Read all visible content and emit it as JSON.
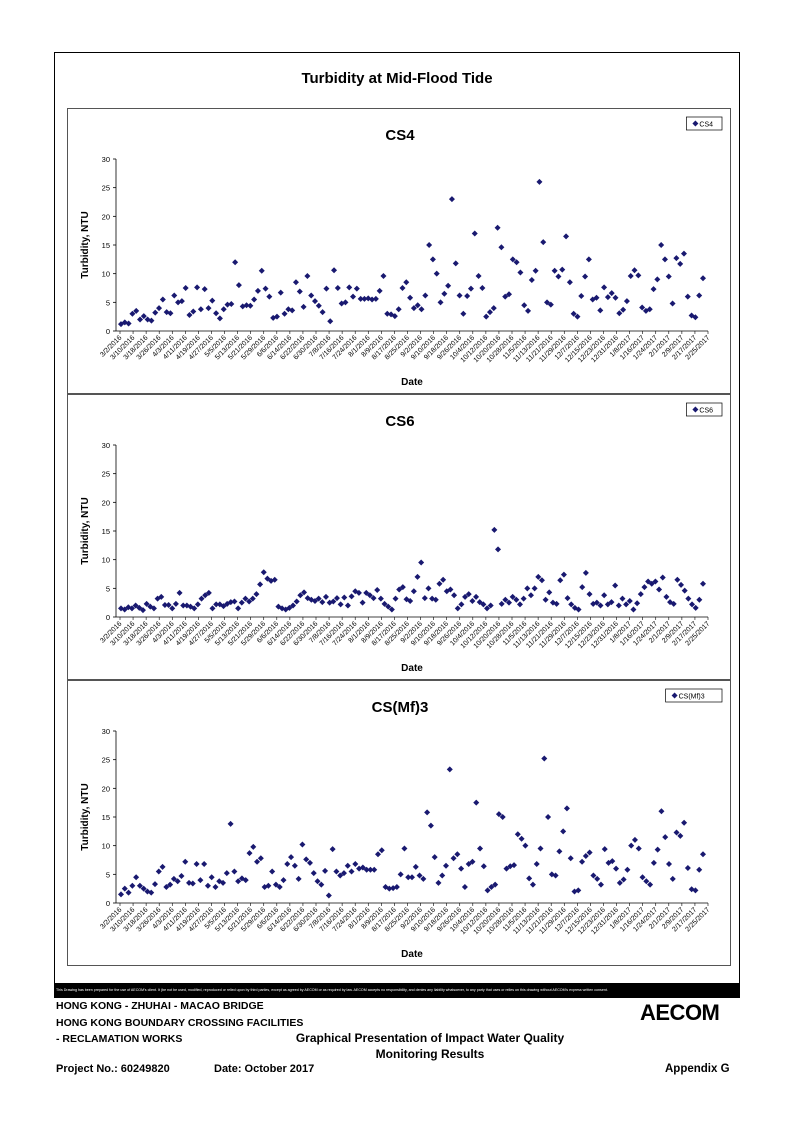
{
  "page": {
    "main_title": "Turbidity at Mid-Flood Tide",
    "disclaimer": "This Drawing has been prepared for the use of AECOM's client. It (be not be used, modified, reproduced or relied upon by third parties, except as agreed by AECOM or as required by law. AECOM accepts no responsibility, and denies any liability whatsoever, to any party that uses or relies on this drawing without AECOM's express written consent.",
    "project_line1": "HONG KONG - ZHUHAI - MACAO BRIDGE",
    "project_line2": "HONG KONG BOUNDARY CROSSING FACILITIES",
    "project_line3": "- RECLAMATION WORKS",
    "report_title_line1": "Graphical Presentation of Impact Water Quality",
    "report_title_line2": "Monitoring Results",
    "project_no": "Project No.: 60249820",
    "date": "Date: October 2017",
    "appendix": "Appendix G",
    "logo_text": "AECOM"
  },
  "colors": {
    "marker": "#191970",
    "axis": "#000000"
  },
  "chart_data": [
    {
      "type": "scatter",
      "title": "CS4",
      "xlabel": "Date",
      "ylabel": "Turbidity, NTU",
      "ylim": [
        0,
        30
      ],
      "yticks": [
        "0",
        "5",
        "10",
        "15",
        "20",
        "25",
        "30"
      ],
      "legend": "CS4",
      "legend_position": "top-right",
      "xticks": [
        "3/2/2016",
        "3/10/2016",
        "3/18/2016",
        "3/26/2016",
        "4/3/2016",
        "4/11/2016",
        "4/19/2016",
        "4/27/2016",
        "5/5/2016",
        "5/13/2016",
        "5/21/2016",
        "5/29/2016",
        "6/6/2016",
        "6/14/2016",
        "6/22/2016",
        "6/30/2016",
        "7/8/2016",
        "7/16/2016",
        "7/24/2016",
        "8/1/2016",
        "8/9/2016",
        "8/17/2016",
        "8/25/2016",
        "9/2/2016",
        "9/10/2016",
        "9/18/2016",
        "9/26/2016",
        "10/4/2016",
        "10/12/2016",
        "10/20/2016",
        "10/28/2016",
        "11/5/2016",
        "11/13/2016",
        "11/21/2016",
        "11/29/2016",
        "12/7/2016",
        "12/15/2016",
        "12/23/2016",
        "12/31/2016",
        "1/8/2017",
        "1/16/2017",
        "1/24/2017",
        "2/1/2017",
        "2/9/2017",
        "2/17/2017",
        "2/25/2017"
      ],
      "values": [
        1.2,
        1.5,
        1.3,
        3,
        3.5,
        2,
        2.6,
        2,
        1.8,
        3.2,
        4,
        5.5,
        3.3,
        3.1,
        6.2,
        5,
        5.2,
        7.5,
        2.8,
        3.4,
        7.6,
        3.8,
        7.3,
        4,
        5.3,
        3.1,
        2.2,
        3.8,
        4.6,
        4.7,
        12,
        8,
        4.3,
        4.5,
        4.4,
        5.5,
        7,
        10.5,
        7.4,
        6,
        2.3,
        2.5,
        6.7,
        3,
        3.8,
        3.6,
        8.5,
        6.9,
        4.2,
        9.6,
        6.2,
        5.2,
        4.4,
        3.3,
        7.4,
        1.7,
        10.6,
        7.5,
        4.8,
        5,
        7.6,
        6,
        7.4,
        5.6,
        5.6,
        5.7,
        5.5,
        5.6,
        7,
        9.6,
        3,
        2.9,
        2.6,
        3.8,
        7.5,
        8.5,
        5.8,
        4,
        4.5,
        3.8,
        6.2,
        15,
        12.5,
        10,
        5,
        6.5,
        7.9,
        23,
        11.8,
        6.2,
        3,
        6.1,
        7.4,
        17,
        9.6,
        7.5,
        2.5,
        3.3,
        4,
        18,
        14.6,
        6,
        6.4,
        12.5,
        12,
        10.2,
        4.5,
        3.5,
        8.9,
        10.5,
        26,
        15.5,
        5,
        4.6,
        10.5,
        9.5,
        10.7,
        16.5,
        8.5,
        3,
        2.5,
        6.1,
        9.5,
        12.5,
        5.5,
        5.8,
        3.6,
        7.6,
        5.9,
        6.6,
        5.8,
        3.1,
        3.7,
        5.2,
        9.6,
        10.6,
        9.7,
        4.1,
        3.5,
        3.8,
        7.3,
        9,
        15,
        12.5,
        9.5,
        4.8,
        12.7,
        11.7,
        13.5,
        6,
        2.7,
        2.4,
        6.2,
        9.2
      ]
    },
    {
      "type": "scatter",
      "title": "CS6",
      "xlabel": "Date",
      "ylabel": "Turbidity, NTU",
      "ylim": [
        0,
        30
      ],
      "yticks": [
        "0",
        "5",
        "10",
        "15",
        "20",
        "25",
        "30"
      ],
      "legend": "CS6",
      "legend_position": "top-right",
      "xticks": [
        "3/2/2016",
        "3/10/2016",
        "3/18/2016",
        "3/26/2016",
        "4/3/2016",
        "4/11/2016",
        "4/19/2016",
        "4/27/2016",
        "5/5/2016",
        "5/13/2016",
        "5/21/2016",
        "5/29/2016",
        "6/6/2016",
        "6/14/2016",
        "6/22/2016",
        "6/30/2016",
        "7/8/2016",
        "7/16/2016",
        "7/24/2016",
        "8/1/2016",
        "8/9/2016",
        "8/17/2016",
        "8/25/2016",
        "9/2/2016",
        "9/10/2016",
        "9/18/2016",
        "9/26/2016",
        "10/4/2016",
        "10/12/2016",
        "10/20/2016",
        "10/28/2016",
        "11/5/2016",
        "11/13/2016",
        "11/21/2016",
        "11/29/2016",
        "12/7/2016",
        "12/15/2016",
        "12/23/2016",
        "12/31/2016",
        "1/8/2017",
        "1/16/2017",
        "1/24/2017",
        "2/1/2017",
        "2/9/2017",
        "2/17/2017",
        "2/25/2017"
      ],
      "values": [
        1.5,
        1.3,
        1.7,
        1.5,
        2,
        1.6,
        1.2,
        2.3,
        1.8,
        1.5,
        3.2,
        3.5,
        2.1,
        2.1,
        1.5,
        2.3,
        4.2,
        2,
        2,
        1.8,
        1.5,
        2.2,
        3.2,
        3.8,
        4.2,
        1.5,
        2.2,
        2.2,
        1.9,
        2.3,
        2.6,
        2.7,
        1.5,
        2.5,
        3.2,
        2.7,
        3.2,
        4,
        5.7,
        7.8,
        6.7,
        6.3,
        6.5,
        1.8,
        1.5,
        1.3,
        1.6,
        2,
        2.7,
        3.8,
        4.3,
        3.3,
        3,
        2.8,
        3.2,
        2.6,
        3.5,
        2.5,
        2.7,
        3.3,
        2.2,
        3.4,
        2,
        3.6,
        4.5,
        4.2,
        2.5,
        4.2,
        3.8,
        3.3,
        4.7,
        3.2,
        2.3,
        1.8,
        1.3,
        3.2,
        4.8,
        5.2,
        3.1,
        2.8,
        4.5,
        7,
        9.5,
        3.3,
        5,
        3.2,
        3,
        5.8,
        6.5,
        4.5,
        4.8,
        3.8,
        1.5,
        2.2,
        3.5,
        4,
        2.8,
        3.5,
        2.6,
        2.2,
        1.5,
        2,
        15.2,
        11.8,
        2.3,
        3,
        2.5,
        3.5,
        3,
        2.2,
        3.2,
        5,
        3.8,
        5,
        7,
        6.4,
        3,
        4.3,
        2.5,
        2.3,
        6.4,
        7.4,
        3.3,
        2.2,
        1.6,
        1.3,
        5.2,
        7.7,
        4,
        2.3,
        2.5,
        2,
        3.8,
        2.2,
        2.6,
        5.5,
        2,
        3.2,
        2.2,
        2.8,
        1.3,
        2.4,
        4,
        5.2,
        6.2,
        5.8,
        6.2,
        4.8,
        6.9,
        3.5,
        2.6,
        2.3,
        6.5,
        5.6,
        4.6,
        3.2,
        2.2,
        1.6,
        3,
        5.8
      ]
    },
    {
      "type": "scatter",
      "title": "CS(Mf)3",
      "xlabel": "Date",
      "ylabel": "Turbidity, NTU",
      "ylim": [
        0,
        30
      ],
      "yticks": [
        "0",
        "5",
        "10",
        "15",
        "20",
        "25",
        "30"
      ],
      "legend": "CS(Mf)3",
      "legend_position": "top-right",
      "xticks": [
        "3/2/2016",
        "3/10/2016",
        "3/18/2016",
        "3/26/2016",
        "4/3/2016",
        "4/11/2016",
        "4/19/2016",
        "4/27/2016",
        "5/5/2016",
        "5/13/2016",
        "5/21/2016",
        "5/29/2016",
        "6/6/2016",
        "6/14/2016",
        "6/22/2016",
        "6/30/2016",
        "7/8/2016",
        "7/16/2016",
        "7/24/2016",
        "8/1/2016",
        "8/9/2016",
        "8/17/2016",
        "8/25/2016",
        "9/2/2016",
        "9/10/2016",
        "9/18/2016",
        "9/26/2016",
        "10/4/2016",
        "10/12/2016",
        "10/20/2016",
        "10/28/2016",
        "11/5/2016",
        "11/13/2016",
        "11/21/2016",
        "11/29/2016",
        "12/7/2016",
        "12/15/2016",
        "12/23/2016",
        "12/31/2016",
        "1/8/2017",
        "1/16/2017",
        "1/24/2017",
        "2/1/2017",
        "2/9/2017",
        "2/17/2017",
        "2/25/2017"
      ],
      "values": [
        1.5,
        2.5,
        1.8,
        3,
        4.5,
        3,
        2.5,
        2,
        1.8,
        3.3,
        5.5,
        6.3,
        2.8,
        3.2,
        4.2,
        3.8,
        4.7,
        7.2,
        3.5,
        3.4,
        6.8,
        4,
        6.8,
        3,
        4.5,
        2.8,
        3.8,
        3.5,
        5.2,
        13.8,
        5.5,
        3.8,
        4.3,
        4,
        8.7,
        9.8,
        7.2,
        7.8,
        2.8,
        3,
        5.5,
        3.2,
        2.8,
        4,
        6.8,
        8,
        6.5,
        4.2,
        10.2,
        7.6,
        7,
        5.2,
        3.8,
        3.2,
        5.6,
        1.3,
        9.4,
        5.5,
        4.8,
        5.2,
        6.5,
        5.5,
        6.8,
        6,
        6.2,
        5.8,
        5.8,
        5.8,
        8.5,
        9.2,
        2.8,
        2.5,
        2.6,
        2.8,
        5,
        9.5,
        4.5,
        4.5,
        6.3,
        4.8,
        4.2,
        15.8,
        13.5,
        8,
        3.5,
        4.8,
        6.5,
        23.3,
        7.8,
        8.5,
        6,
        2.8,
        6.8,
        7.2,
        17.5,
        9.5,
        6.4,
        2.2,
        2.8,
        3.2,
        15.5,
        15,
        6,
        6.4,
        6.6,
        12,
        11.2,
        10,
        4.3,
        3.2,
        6.8,
        9.5,
        25.2,
        15,
        5,
        4.8,
        9,
        12.5,
        16.5,
        7.8,
        2,
        2.2,
        7.2,
        8.2,
        8.8,
        4.8,
        4.2,
        3.2,
        9.4,
        7,
        7.3,
        6,
        3.5,
        4.1,
        5.8,
        10,
        11,
        9.5,
        4.5,
        3.8,
        3.2,
        7,
        9.3,
        16,
        11.5,
        6.8,
        4.2,
        12.3,
        11.7,
        14,
        6.1,
        2.4,
        2.2,
        5.8,
        8.5
      ]
    }
  ]
}
